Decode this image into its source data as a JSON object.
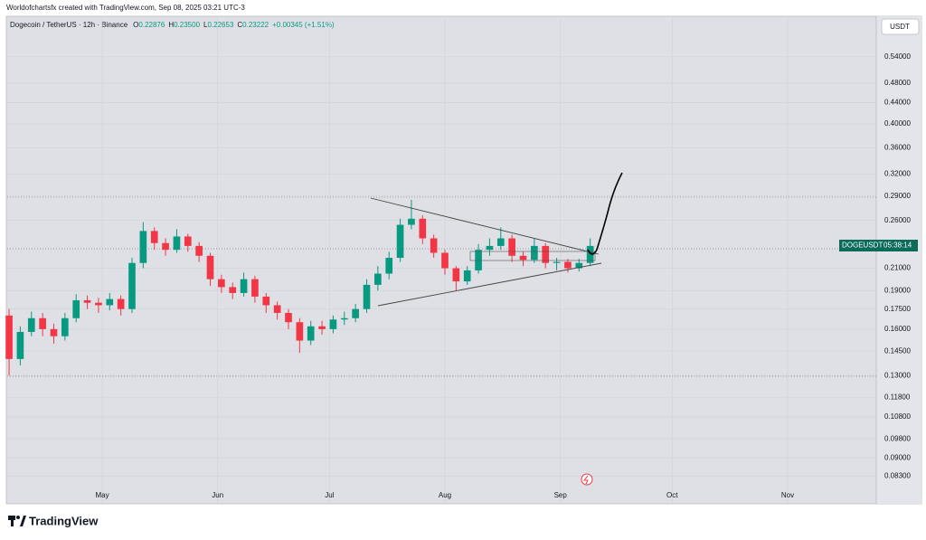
{
  "chart_data": {
    "type": "candlestick",
    "source": "Worldofchartsfx created with TradingView.com, Sep 08, 2025 03:21 UTC-3",
    "title": "Dogecoin / TetherUS · 12h · Binance",
    "ohlc": [
      {
        "label": "O",
        "value": "0.22876"
      },
      {
        "label": "H",
        "value": "0.23500"
      },
      {
        "label": "L",
        "value": "0.22653"
      },
      {
        "label": "C",
        "value": "0.23222"
      }
    ],
    "change": "+0.00345 (+1.51%)",
    "currency": "USDT",
    "price_label": {
      "symbol": "DOGEUSDT",
      "countdown": "05:38:14"
    },
    "brand": "TradingView",
    "up_color": "#089981",
    "down_color": "#f23645",
    "log_scale": true,
    "grid": true,
    "x": [
      5,
      8,
      11,
      14,
      17,
      20,
      23,
      26,
      29,
      32,
      35,
      38,
      41,
      44,
      47,
      50,
      53,
      56,
      59,
      62,
      65,
      68,
      71,
      74,
      77,
      80,
      83,
      86,
      89,
      92,
      95,
      98,
      101,
      104,
      107,
      110,
      113,
      116,
      119,
      122,
      125,
      128,
      131,
      134,
      137,
      140,
      143,
      146,
      149,
      152,
      155,
      158,
      161
    ],
    "open": [
      0.17,
      0.14,
      0.158,
      0.168,
      0.16,
      0.155,
      0.168,
      0.182,
      0.18,
      0.178,
      0.183,
      0.175,
      0.215,
      0.248,
      0.235,
      0.228,
      0.242,
      0.232,
      0.222,
      0.2,
      0.193,
      0.188,
      0.2,
      0.185,
      0.178,
      0.172,
      0.165,
      0.152,
      0.162,
      0.16,
      0.167,
      0.168,
      0.175,
      0.195,
      0.205,
      0.22,
      0.255,
      0.262,
      0.24,
      0.225,
      0.21,
      0.198,
      0.208,
      0.228,
      0.232,
      0.24,
      0.222,
      0.218,
      0.232,
      0.215,
      0.216,
      0.21,
      0.215
    ],
    "high": [
      0.175,
      0.162,
      0.173,
      0.172,
      0.164,
      0.172,
      0.187,
      0.186,
      0.184,
      0.188,
      0.186,
      0.22,
      0.258,
      0.252,
      0.24,
      0.25,
      0.245,
      0.236,
      0.225,
      0.204,
      0.197,
      0.206,
      0.203,
      0.188,
      0.181,
      0.175,
      0.168,
      0.166,
      0.166,
      0.17,
      0.173,
      0.179,
      0.2,
      0.212,
      0.226,
      0.262,
      0.285,
      0.266,
      0.244,
      0.228,
      0.212,
      0.212,
      0.234,
      0.24,
      0.252,
      0.244,
      0.226,
      0.24,
      0.235,
      0.22,
      0.219,
      0.219,
      0.24
    ],
    "low": [
      0.13,
      0.136,
      0.155,
      0.155,
      0.15,
      0.152,
      0.165,
      0.175,
      0.172,
      0.174,
      0.17,
      0.172,
      0.21,
      0.228,
      0.222,
      0.225,
      0.226,
      0.216,
      0.194,
      0.188,
      0.183,
      0.185,
      0.18,
      0.172,
      0.167,
      0.16,
      0.144,
      0.149,
      0.156,
      0.157,
      0.163,
      0.165,
      0.172,
      0.19,
      0.2,
      0.216,
      0.25,
      0.234,
      0.22,
      0.204,
      0.19,
      0.195,
      0.205,
      0.222,
      0.228,
      0.216,
      0.212,
      0.215,
      0.21,
      0.208,
      0.206,
      0.207,
      0.212
    ],
    "close": [
      0.14,
      0.158,
      0.168,
      0.16,
      0.155,
      0.168,
      0.182,
      0.18,
      0.178,
      0.183,
      0.175,
      0.215,
      0.248,
      0.235,
      0.228,
      0.242,
      0.232,
      0.222,
      0.2,
      0.193,
      0.188,
      0.2,
      0.185,
      0.178,
      0.172,
      0.165,
      0.152,
      0.162,
      0.16,
      0.167,
      0.168,
      0.175,
      0.195,
      0.205,
      0.22,
      0.255,
      0.262,
      0.24,
      0.225,
      0.21,
      0.198,
      0.208,
      0.228,
      0.232,
      0.24,
      0.222,
      0.218,
      0.232,
      0.215,
      0.216,
      0.21,
      0.215,
      0.232
    ],
    "xlim": [
      4.5,
      237.8
    ],
    "xticks": [
      {
        "value": 30,
        "label": "May"
      },
      {
        "value": 61,
        "label": "Jun"
      },
      {
        "value": 91,
        "label": "Jul"
      },
      {
        "value": 122,
        "label": "Aug"
      },
      {
        "value": 153,
        "label": "Sep"
      },
      {
        "value": 183,
        "label": "Oct"
      },
      {
        "value": 214,
        "label": "Nov"
      }
    ],
    "ylim": [
      0.0736,
      0.597
    ],
    "yticks": [
      {
        "value": 0.54,
        "label": "0.54000"
      },
      {
        "value": 0.48,
        "label": "0.48000"
      },
      {
        "value": 0.44,
        "label": "0.44000"
      },
      {
        "value": 0.4,
        "label": "0.40000"
      },
      {
        "value": 0.36,
        "label": "0.36000"
      },
      {
        "value": 0.32,
        "label": "0.32000"
      },
      {
        "value": 0.29,
        "label": "0.29000"
      },
      {
        "value": 0.26,
        "label": "0.26000"
      },
      {
        "value": 0.21,
        "label": "0.21000"
      },
      {
        "value": 0.19,
        "label": "0.19000"
      },
      {
        "value": 0.175,
        "label": "0.17500"
      },
      {
        "value": 0.16,
        "label": "0.16000"
      },
      {
        "value": 0.145,
        "label": "0.14500"
      },
      {
        "value": 0.13,
        "label": "0.13000"
      },
      {
        "value": 0.118,
        "label": "0.11800"
      },
      {
        "value": 0.108,
        "label": "0.10800"
      },
      {
        "value": 0.098,
        "label": "0.09800"
      },
      {
        "value": 0.09,
        "label": "0.09000"
      },
      {
        "value": 0.083,
        "label": "0.08300"
      }
    ]
  }
}
